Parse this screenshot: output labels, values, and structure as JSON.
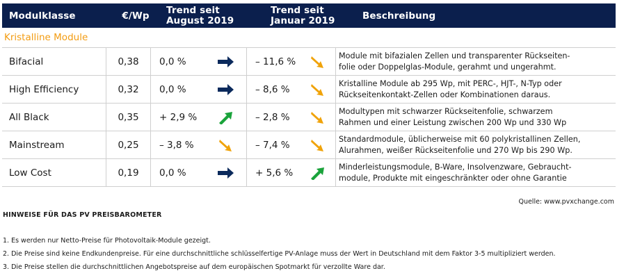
{
  "table": {
    "headers": {
      "modul": "Modulklasse",
      "preis": "€/Wp",
      "trend1_l1": "Trend seit",
      "trend1_l2": "August 2019",
      "trend2_l1": "Trend seit",
      "trend2_l2": "Januar 2019",
      "beschreibung": "Beschreibung"
    },
    "section_label": "Kristalline Module",
    "rows": [
      {
        "name": "Bifacial",
        "price": "0,38",
        "trend1": "0,0 %",
        "trend1_dir": "flat",
        "trend2": "– 11,6 %",
        "trend2_dir": "down",
        "desc_l1": "Module mit bifazialen Zellen und transparenter Rückseiten-",
        "desc_l2": "folie oder Doppelglas-Module, gerahmt und ungerahmt."
      },
      {
        "name": "High Efficiency",
        "price": "0,32",
        "trend1": "0,0 %",
        "trend1_dir": "flat",
        "trend2": "– 8,6 %",
        "trend2_dir": "down",
        "desc_l1": "Kristalline Module ab 295 Wp, mit PERC-, HJT-, N-Typ oder",
        "desc_l2": "Rückseitenkontakt-Zellen oder Kombinationen daraus."
      },
      {
        "name": "All Black",
        "price": "0,35",
        "trend1": "+ 2,9 %",
        "trend1_dir": "up",
        "trend2": "– 2,8 %",
        "trend2_dir": "down",
        "desc_l1": "Modultypen mit schwarzer Rückseitenfolie, schwarzem",
        "desc_l2": "Rahmen und einer Leistung  zwischen 200 Wp und 330 Wp"
      },
      {
        "name": "Mainstream",
        "price": "0,25",
        "trend1": "– 3,8 %",
        "trend1_dir": "down",
        "trend2": "– 7,4 %",
        "trend2_dir": "down",
        "desc_l1": "Standardmodule, üblicherweise mit 60 polykristallinen Zellen,",
        "desc_l2": "Alurahmen, weißer Rückseitenfolie und 270 Wp bis 290 Wp."
      },
      {
        "name": "Low Cost",
        "price": "0,19",
        "trend1": "0,0 %",
        "trend1_dir": "flat",
        "trend2": "+ 5,6 %",
        "trend2_dir": "up",
        "desc_l1": "Minderleistungsmodule, B-Ware, Insolvenzware, Gebraucht-",
        "desc_l2": "module, Produkte mit eingeschränkter oder ohne Garantie"
      }
    ]
  },
  "colors": {
    "header_bg": "#0b1f4d",
    "section_text": "#f39c12",
    "arrow_flat": "#0b2a5c",
    "arrow_up": "#1aa33b",
    "arrow_down": "#f0a30a"
  },
  "icons": {
    "flat": "arrow-right-icon",
    "up": "arrow-up-right-icon",
    "down": "arrow-down-right-icon"
  },
  "source": "Quelle: www.pvxchange.com",
  "notes": {
    "title": "HINWEISE FÜR DAS PV PREISBAROMETER",
    "items": [
      "1.  Es werden nur Netto-Preise für Photovoltaik-Module gezeigt.",
      "2. Die Preise sind keine Endkundenpreise. Für eine durchschnittliche schlüsselfertige PV-Anlage muss der Wert in Deutschland mit dem Faktor 3-5 multipliziert werden.",
      "3. Die Preise stellen die durchschnittlichen Angebotspreise auf dem europäischen Spotmarkt für verzollte Ware dar."
    ]
  }
}
